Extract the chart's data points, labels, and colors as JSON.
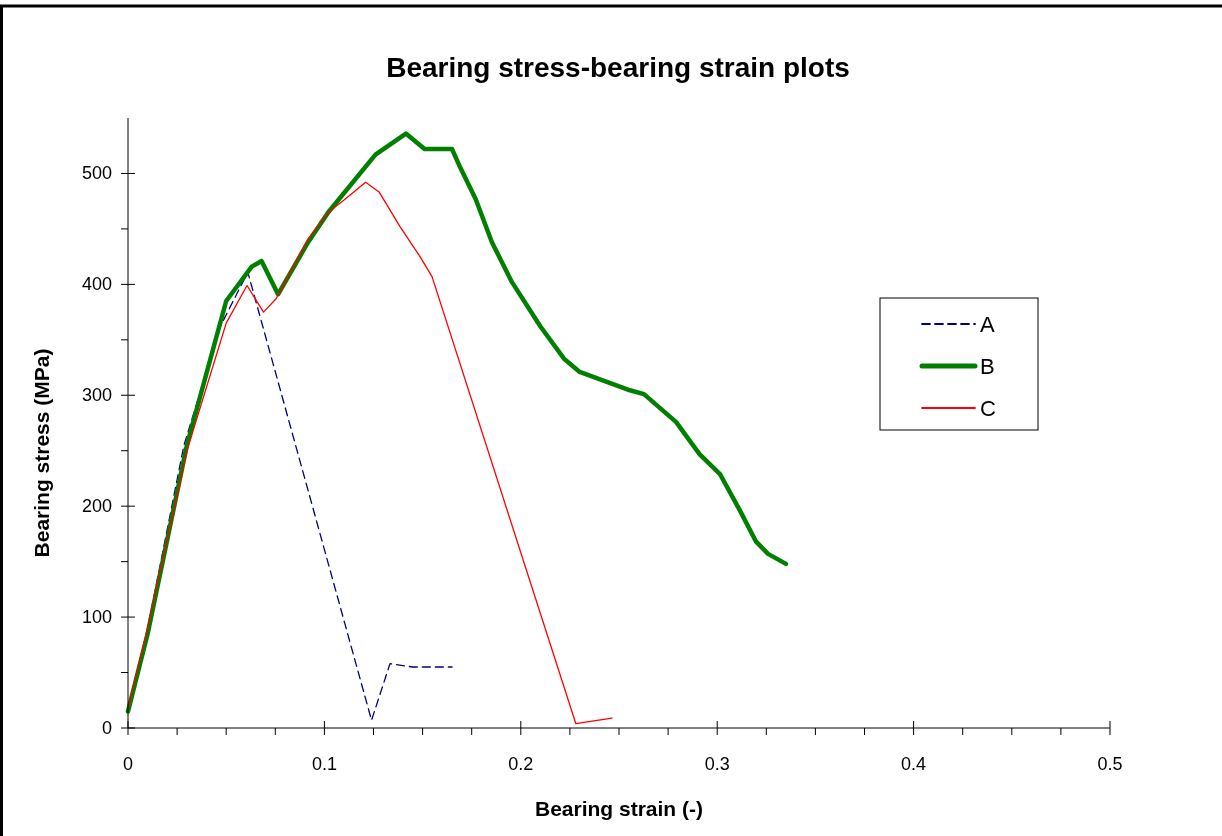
{
  "chart_data": {
    "type": "line",
    "title": "Bearing stress-bearing strain plots",
    "xlabel": "Bearing strain (-)",
    "ylabel": "Bearing stress (MPa)",
    "xlim": [
      0,
      0.5
    ],
    "xticks": [
      0,
      {
        "value": 0.025,
        "label": null
      },
      {
        "value": 0.05,
        "label": null
      },
      {
        "value": 0.075,
        "label": null
      },
      0.1,
      {
        "value": 0.125,
        "label": null
      },
      {
        "value": 0.15,
        "label": null
      },
      {
        "value": 0.175,
        "label": null
      },
      0.2,
      {
        "value": 0.225,
        "label": null
      },
      {
        "value": 0.25,
        "label": null
      },
      {
        "value": 0.275,
        "label": null
      },
      0.3,
      {
        "value": 0.325,
        "label": null
      },
      {
        "value": 0.35,
        "label": null
      },
      {
        "value": 0.375,
        "label": null
      },
      0.4,
      {
        "value": 0.425,
        "label": null
      },
      {
        "value": 0.45,
        "label": null
      },
      {
        "value": 0.475,
        "label": null
      },
      0.5
    ],
    "ylim": [
      0,
      550
    ],
    "yticks": [
      0,
      {
        "value": 50,
        "label": null
      },
      100,
      {
        "value": 150,
        "label": null
      },
      200,
      {
        "value": 250,
        "label": null
      },
      300,
      {
        "value": 350,
        "label": null
      },
      400,
      {
        "value": 450,
        "label": null
      },
      500
    ],
    "grid": false,
    "legend": "right",
    "series": [
      {
        "name": "A",
        "color": "#000080",
        "line_style": "dashed",
        "x": [
          0,
          0.01,
          0.0285,
          0.047,
          0.061,
          0.124,
          0.1334,
          0.145,
          0.165
        ],
        "values": [
          15,
          90,
          255,
          362,
          411,
          7,
          58,
          55,
          55
        ]
      },
      {
        "name": "B",
        "color": "#008000",
        "line_style": "solid",
        "x": [
          0,
          0.01,
          0.03,
          0.05,
          0.063,
          0.068,
          0.0764,
          0.0917,
          0.102,
          0.126,
          0.1415,
          0.151,
          0.165,
          0.169,
          0.177,
          0.1853,
          0.1955,
          0.21,
          0.222,
          0.23,
          0.2424,
          0.2546,
          0.2627,
          0.279,
          0.291,
          0.3014,
          0.3116,
          0.3198,
          0.3259,
          0.335
        ],
        "values": [
          15,
          85,
          255,
          385,
          416,
          421,
          391,
          438,
          465,
          517,
          536,
          522,
          522,
          506,
          477,
          438,
          402,
          362,
          333,
          321,
          313,
          305,
          301,
          276,
          247,
          229,
          196,
          168,
          157,
          148
        ]
      },
      {
        "name": "C",
        "color": "#ff0000",
        "line_style": "solid",
        "x": [
          0,
          0.01,
          0.03,
          0.05,
          0.0606,
          0.069,
          0.0754,
          0.0917,
          0.102,
          0.11,
          0.121,
          0.128,
          0.1385,
          0.1487,
          0.1548,
          0.228,
          0.2464
        ],
        "values": [
          18,
          90,
          250,
          365,
          399,
          375,
          387,
          441,
          465,
          476,
          492,
          483,
          452,
          425,
          407,
          4,
          9
        ]
      }
    ]
  }
}
